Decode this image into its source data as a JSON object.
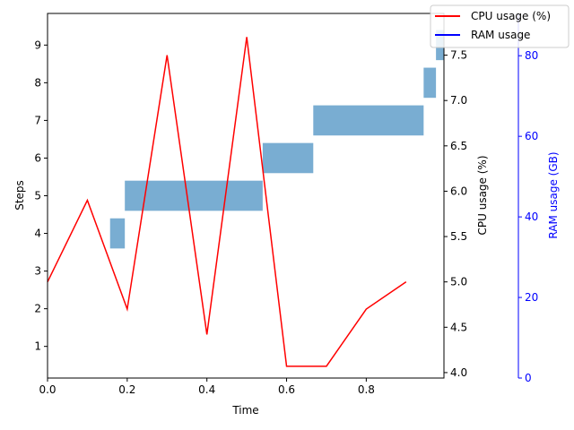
{
  "chart_data": {
    "type": "line",
    "x_axis": {
      "label": "Time",
      "ticks": [
        "0.0",
        "0.2",
        "0.4",
        "0.6",
        "0.8"
      ],
      "tick_values": [
        0.0,
        0.2,
        0.4,
        0.6,
        0.8
      ],
      "range": [
        0.0,
        0.995
      ]
    },
    "steps_axis": {
      "label": "Steps",
      "ticks": [
        "1",
        "2",
        "3",
        "4",
        "5",
        "6",
        "7",
        "8",
        "9"
      ],
      "tick_values": [
        1,
        2,
        3,
        4,
        5,
        6,
        7,
        8,
        9
      ],
      "range": [
        0.16,
        9.84
      ]
    },
    "cpu_axis": {
      "label": "CPU usage (%)",
      "ticks": [
        "4.0",
        "4.5",
        "5.0",
        "5.5",
        "6.0",
        "6.5",
        "7.0",
        "7.5"
      ],
      "tick_values": [
        4.0,
        4.5,
        5.0,
        5.5,
        6.0,
        6.5,
        7.0,
        7.5
      ],
      "range": [
        3.94,
        7.96
      ]
    },
    "ram_axis": {
      "label": "RAM usage (GB)",
      "ticks": [
        "0",
        "20",
        "40",
        "60",
        "80"
      ],
      "tick_values": [
        0,
        20,
        40,
        60,
        80
      ],
      "range": [
        0,
        90.5
      ],
      "color": "#0000ff"
    },
    "series": [
      {
        "name": "CPU usage (%)",
        "color": "#ff0000",
        "axis": "cpu",
        "x": [
          0.0,
          0.1,
          0.2,
          0.3,
          0.4,
          0.5,
          0.6,
          0.7,
          0.8,
          0.9
        ],
        "values": [
          5.0,
          5.9,
          4.7,
          7.5,
          4.42,
          7.7,
          4.07,
          4.07,
          4.7,
          5.0
        ]
      },
      {
        "name": "RAM usage",
        "color": "#0000ff",
        "axis": "ram",
        "x": [],
        "values": []
      }
    ],
    "steps": {
      "color": "#1f77b4",
      "opacity": 0.6,
      "bars": [
        {
          "step": 4,
          "start": 0.157,
          "end": 0.194
        },
        {
          "step": 5,
          "start": 0.194,
          "end": 0.54
        },
        {
          "step": 6,
          "start": 0.54,
          "end": 0.667
        },
        {
          "step": 7,
          "start": 0.667,
          "end": 0.944
        },
        {
          "step": 8,
          "start": 0.944,
          "end": 0.975
        },
        {
          "step": 9,
          "start": 0.975,
          "end": 0.995
        }
      ]
    },
    "legend": {
      "position": "top-right",
      "entries": [
        "CPU usage (%)",
        "RAM usage"
      ]
    },
    "grid": false
  }
}
